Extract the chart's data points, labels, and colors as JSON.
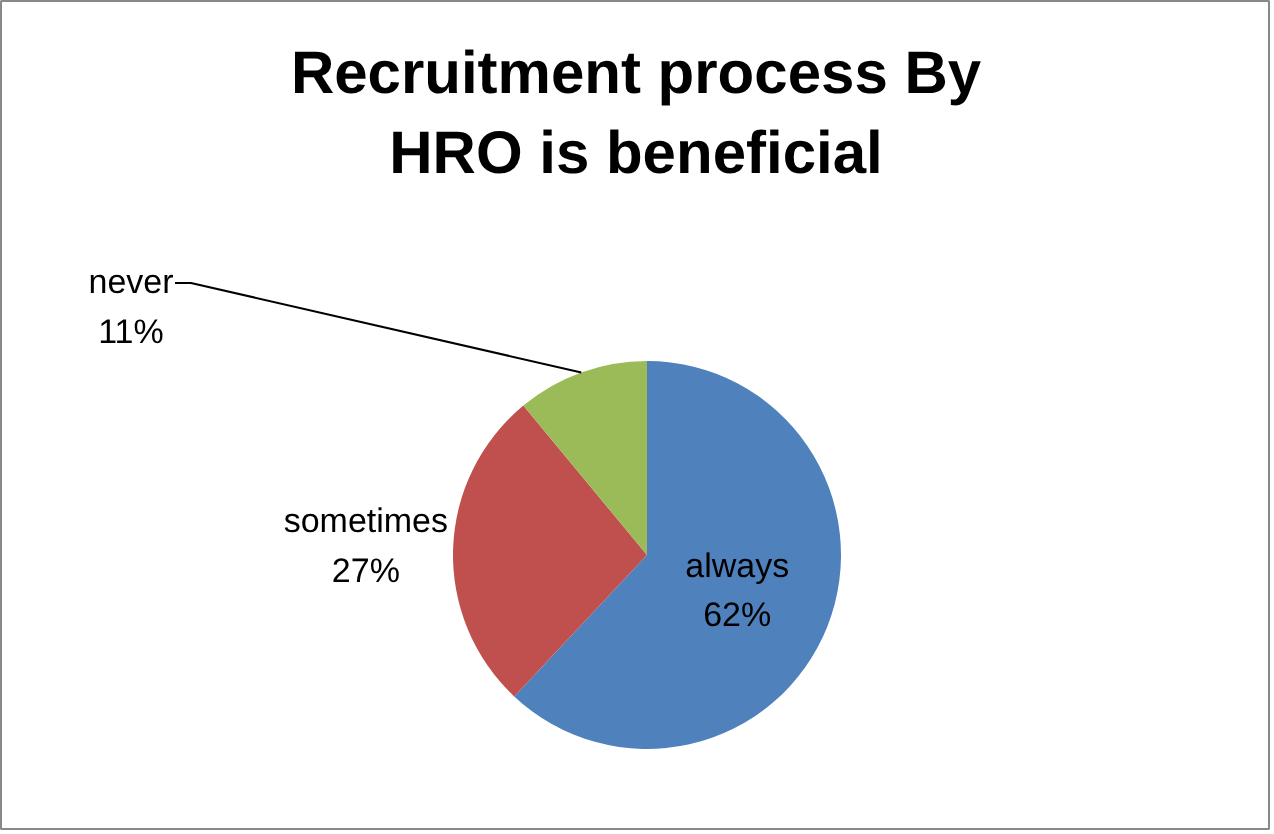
{
  "chart_data": {
    "type": "pie",
    "title": "Recruitment process By HRO is beneficial",
    "categories": [
      "always",
      "sometimes",
      "never"
    ],
    "values": [
      62,
      27,
      11
    ],
    "colors": [
      "#4f81bd",
      "#c0504d",
      "#9bbb59"
    ],
    "value_labels": [
      "62%",
      "27%",
      "11%"
    ]
  }
}
